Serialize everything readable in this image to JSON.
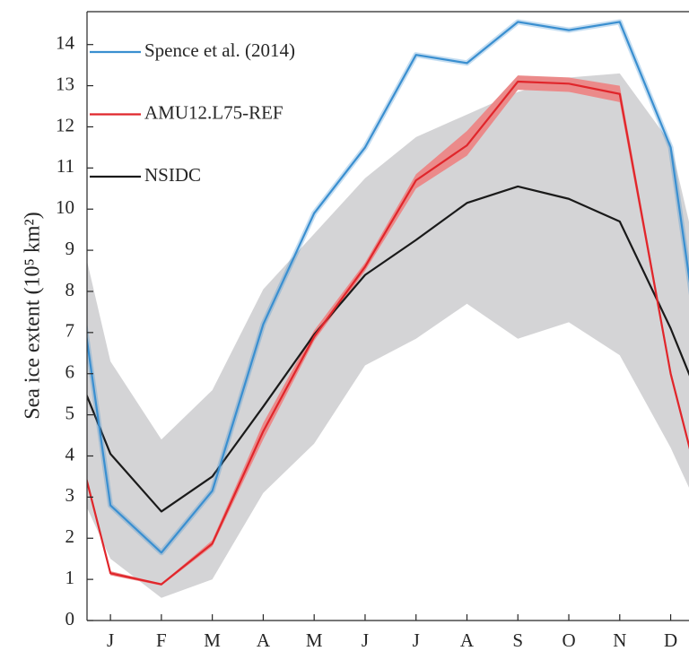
{
  "chart_data": {
    "type": "line",
    "y_label": "Sea ice extent (10⁵ km²)",
    "x": [
      0,
      1,
      2,
      3,
      4,
      5,
      6,
      7,
      8,
      9,
      10,
      11,
      12,
      13
    ],
    "xlim": [
      0.54,
      12.36
    ],
    "xticks": [
      {
        "value": 1,
        "label": "J"
      },
      {
        "value": 2,
        "label": "F"
      },
      {
        "value": 3,
        "label": "M"
      },
      {
        "value": 4,
        "label": "A"
      },
      {
        "value": 5,
        "label": "M"
      },
      {
        "value": 6,
        "label": "J"
      },
      {
        "value": 7,
        "label": "J"
      },
      {
        "value": 8,
        "label": "A"
      },
      {
        "value": 9,
        "label": "S"
      },
      {
        "value": 10,
        "label": "O"
      },
      {
        "value": 11,
        "label": "N"
      },
      {
        "value": 12,
        "label": "D"
      }
    ],
    "ylim": [
      0,
      14.8
    ],
    "yticks": [
      0,
      1,
      2,
      3,
      4,
      5,
      6,
      7,
      8,
      9,
      10,
      11,
      12,
      13,
      14
    ],
    "legend": "upper left",
    "series": [
      {
        "name": "NSIDC",
        "color": "#1a1a1a",
        "band_color": "#d4d4d6",
        "values": [
          7.1,
          4.05,
          2.65,
          3.5,
          5.2,
          6.95,
          8.4,
          9.25,
          10.15,
          10.55,
          10.25,
          9.7,
          7.1,
          4.05
        ],
        "lower": [
          4.2,
          1.5,
          0.55,
          1.0,
          3.1,
          4.3,
          6.2,
          6.85,
          7.7,
          6.85,
          7.25,
          6.45,
          4.2,
          1.5
        ],
        "upper": [
          11.6,
          6.3,
          4.4,
          5.6,
          8.05,
          9.4,
          10.75,
          11.75,
          12.3,
          12.85,
          13.2,
          13.3,
          11.6,
          6.3
        ]
      },
      {
        "name": "AMU12.L75-REF",
        "color": "#e0262b",
        "band_color": "#eb8a8a",
        "values": [
          6.0,
          1.15,
          0.88,
          1.87,
          4.6,
          6.9,
          8.6,
          10.7,
          11.55,
          13.1,
          13.05,
          12.8,
          6.0,
          1.15
        ],
        "lower": [
          5.9,
          1.1,
          0.85,
          1.8,
          4.4,
          6.8,
          8.5,
          10.5,
          11.3,
          12.9,
          12.85,
          12.6,
          5.9,
          1.1
        ],
        "upper": [
          6.1,
          1.2,
          0.9,
          1.95,
          4.8,
          7.05,
          8.7,
          10.85,
          11.9,
          13.25,
          13.2,
          13.0,
          6.1,
          1.2
        ]
      },
      {
        "name": "Spence et al. (2014)",
        "color": "#3a8fd0",
        "values": [
          11.5,
          2.8,
          1.65,
          3.15,
          7.2,
          9.9,
          11.5,
          13.75,
          13.55,
          14.55,
          14.35,
          14.55,
          11.5,
          2.8
        ]
      }
    ]
  }
}
